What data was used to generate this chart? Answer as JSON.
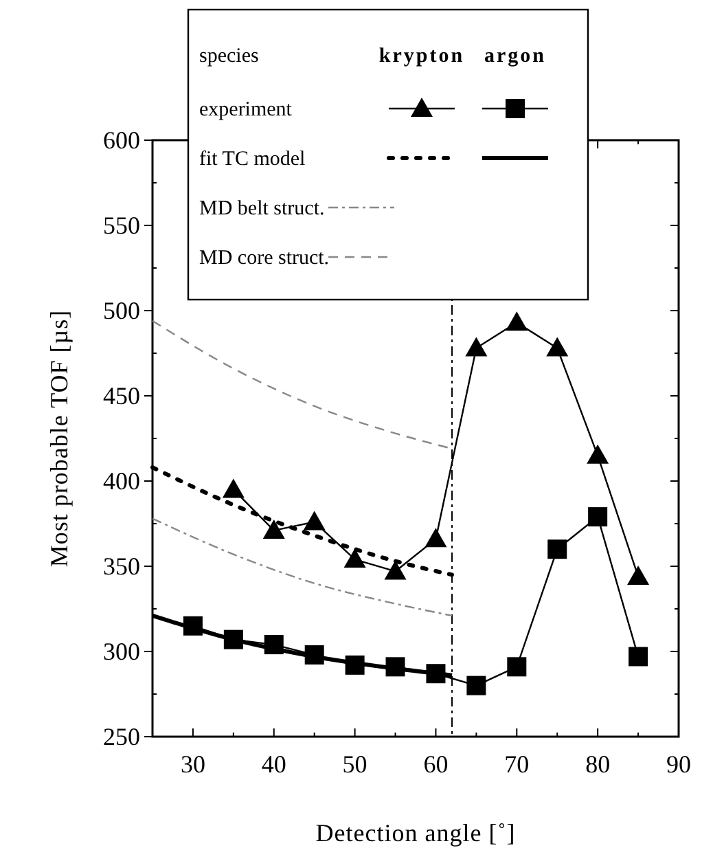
{
  "chart_data": {
    "type": "line",
    "xlabel": "Detection angle [˚]",
    "ylabel": "Most probable TOF [µs]",
    "xlim": [
      25,
      90
    ],
    "ylim": [
      250,
      600
    ],
    "xticks": [
      30,
      40,
      50,
      60,
      70,
      80,
      90
    ],
    "yticks": [
      250,
      300,
      350,
      400,
      450,
      500,
      550,
      600
    ],
    "legend": "top",
    "legend_title": "species",
    "annotations": [
      "krypton",
      "argon",
      "experiment",
      "fit TC model"
    ],
    "ref_lines": [
      {
        "axis": "x",
        "value": 62,
        "color": "#000000",
        "line_style": "dashdot"
      }
    ],
    "series": [
      {
        "color": "#000000",
        "marker": "triangle",
        "line_style": "solid",
        "x": [
          35,
          40,
          45,
          50,
          55,
          60,
          65,
          70,
          75,
          80,
          85
        ],
        "values": [
          395,
          371,
          376,
          354,
          347,
          366,
          478,
          493,
          478,
          415,
          344
        ]
      },
      {
        "color": "#000000",
        "marker": "square",
        "line_style": "solid",
        "x": [
          30,
          35,
          40,
          45,
          50,
          55,
          60,
          65,
          70,
          75,
          80,
          85
        ],
        "values": [
          315,
          307,
          304,
          298,
          292,
          291,
          287,
          280,
          291,
          360,
          379,
          297
        ]
      },
      {
        "color": "#000000",
        "marker": "none",
        "line_style": "dotted",
        "x": [
          25,
          35,
          45,
          55,
          62
        ],
        "values": [
          408,
          386,
          368,
          353,
          345
        ]
      },
      {
        "color": "#000000",
        "marker": "none",
        "line_style": "solid",
        "x": [
          25,
          35,
          45,
          55,
          62
        ],
        "values": [
          321,
          307,
          297,
          290,
          286
        ]
      },
      {
        "name": "MD belt struct.",
        "color": "#888888",
        "marker": "none",
        "line_style": "dashdot",
        "x": [
          25,
          35,
          45,
          55,
          62
        ],
        "values": [
          378,
          357,
          340,
          328,
          321
        ]
      },
      {
        "name": "MD core struct.",
        "color": "#888888",
        "marker": "none",
        "line_style": "dashed",
        "x": [
          25,
          35,
          45,
          55,
          62
        ],
        "values": [
          494,
          466,
          444,
          428,
          419
        ]
      }
    ]
  }
}
